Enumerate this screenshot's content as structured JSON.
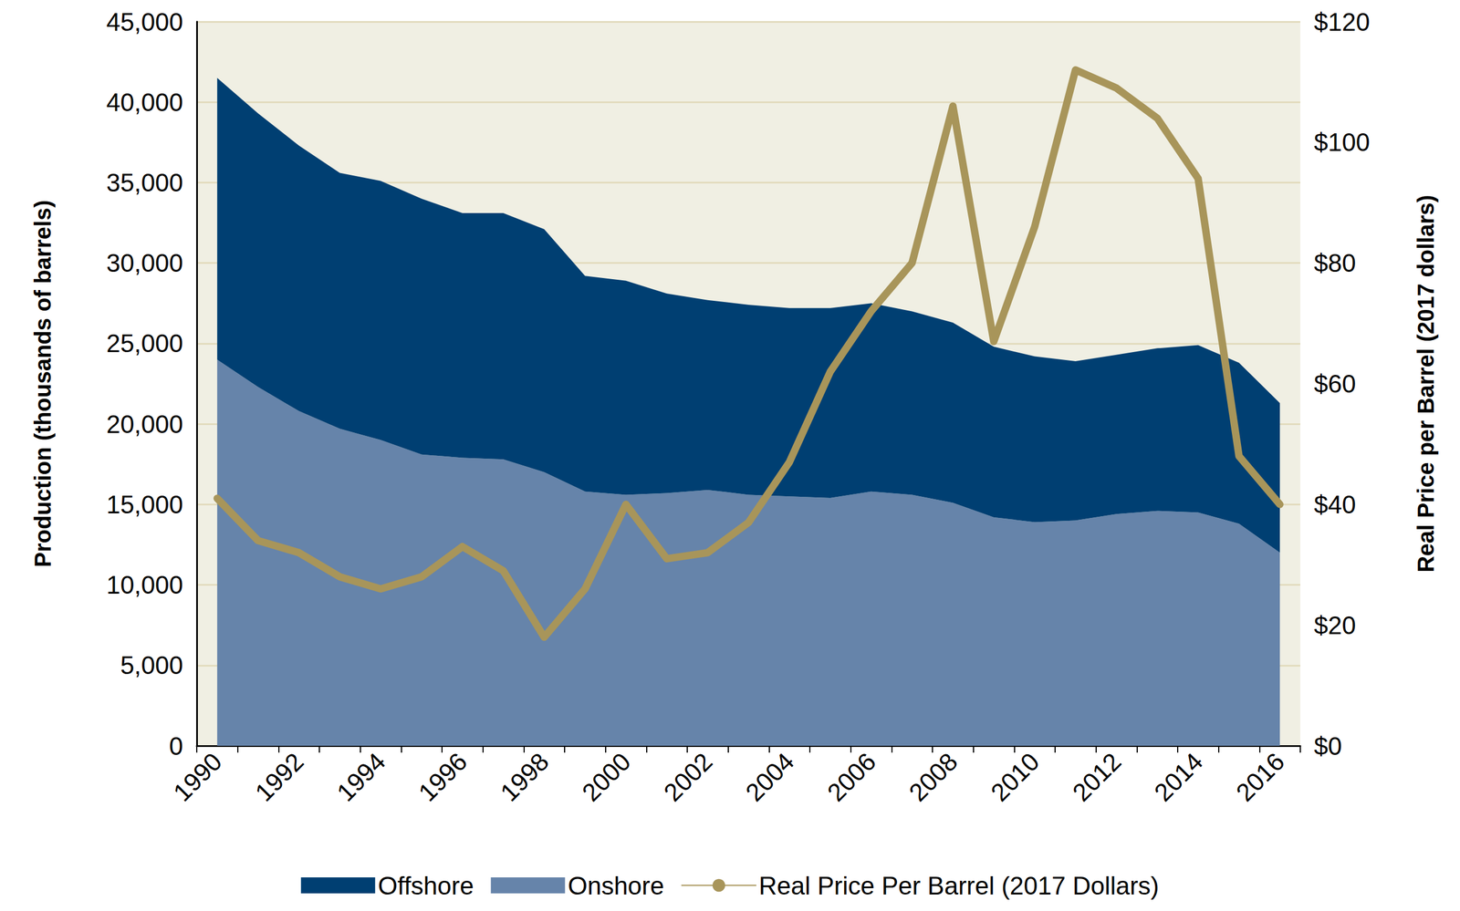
{
  "chart_data": {
    "type": "area",
    "stacked": true,
    "grid": true,
    "legend": "bottom",
    "categories": [
      "1990",
      null,
      "1992",
      null,
      "1994",
      null,
      "1996",
      null,
      "1998",
      null,
      "2000",
      null,
      "2002",
      null,
      "2004",
      null,
      "2006",
      null,
      "2008",
      null,
      "2010",
      null,
      "2012",
      null,
      "2014",
      null,
      "2016"
    ],
    "y_label": "Production (thousands of barrels)",
    "y2_label": "Real Price per Barrel (2017 dollars)",
    "ylim": [
      0,
      45000
    ],
    "yticks": [
      0,
      {
        "value": 5000,
        "label": "5,000"
      },
      {
        "value": 10000,
        "label": "10,000"
      },
      {
        "value": 15000,
        "label": "15,000"
      },
      {
        "value": 20000,
        "label": "20,000"
      },
      {
        "value": 25000,
        "label": "25,000"
      },
      {
        "value": 30000,
        "label": "30,000"
      },
      {
        "value": 35000,
        "label": "35,000"
      },
      {
        "value": 40000,
        "label": "40,000"
      },
      {
        "value": 45000,
        "label": "45,000"
      }
    ],
    "y2lim": [
      0,
      120
    ],
    "y2ticks": [
      {
        "value": 0,
        "label": "$0"
      },
      {
        "value": 20,
        "label": "$20"
      },
      {
        "value": 40,
        "label": "$40"
      },
      {
        "value": 60,
        "label": "$60"
      },
      {
        "value": 80,
        "label": "$80"
      },
      {
        "value": 100,
        "label": "$100"
      },
      {
        "value": 120,
        "label": "$120"
      }
    ],
    "series": [
      {
        "name": "Offshore",
        "type": "area",
        "color": "#003f72",
        "values": [
          17500,
          17000,
          16500,
          15900,
          16100,
          15900,
          15200,
          15300,
          15100,
          13400,
          13300,
          12400,
          11800,
          11800,
          11700,
          11800,
          11700,
          11400,
          11200,
          10600,
          10300,
          9900,
          9900,
          10100,
          10400,
          10000,
          9300
        ]
      },
      {
        "name": "Onshore",
        "type": "area",
        "color": "#6684aa",
        "values": [
          24000,
          22300,
          20800,
          19700,
          19000,
          18100,
          17900,
          17800,
          17000,
          15800,
          15600,
          15700,
          15900,
          15600,
          15500,
          15400,
          15800,
          15600,
          15100,
          14200,
          13900,
          14000,
          14400,
          14600,
          14500,
          13800,
          12000
        ]
      },
      {
        "name": "Real Price Per Barrel (2017 Dollars)",
        "type": "line",
        "axis": "y2",
        "color": "#a8955a",
        "values": [
          41,
          34,
          32,
          28,
          26,
          28,
          33,
          29,
          18,
          26,
          40,
          31,
          32,
          37,
          47,
          62,
          72,
          80,
          106,
          67,
          86,
          112,
          109,
          104,
          94,
          48,
          40
        ]
      }
    ]
  }
}
